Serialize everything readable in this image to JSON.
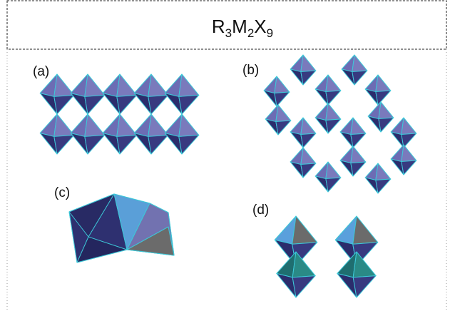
{
  "header": {
    "title": {
      "parts": [
        "R",
        "3",
        "M",
        "2",
        "X",
        "9"
      ]
    }
  },
  "panels": [
    {
      "label": "(a)"
    },
    {
      "label": "(b)"
    },
    {
      "label": "(c)"
    },
    {
      "label": "(d)"
    }
  ]
}
